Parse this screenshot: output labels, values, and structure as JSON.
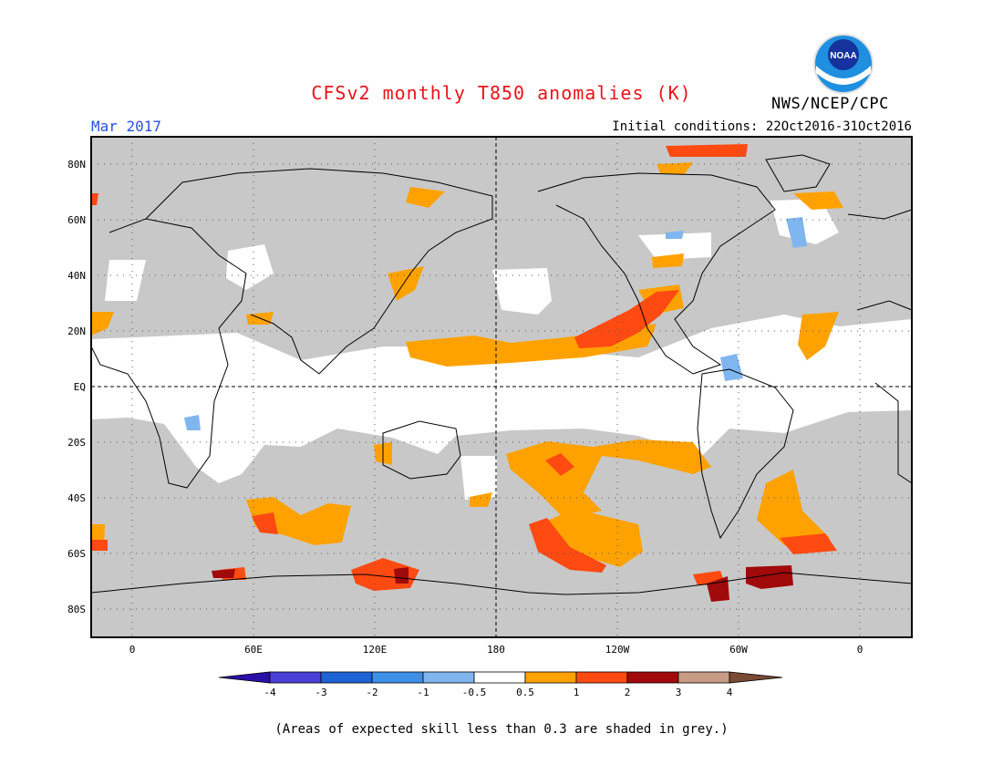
{
  "header": {
    "title": "CFSv2 monthly T850 anomalies (K)",
    "org": "NWS/NCEP/CPC",
    "valid_month": "Mar 2017",
    "initial_conditions": "Initial conditions: 22Oct2016-31Oct2016",
    "logo_text": "NOAA"
  },
  "map": {
    "lat_labels": [
      "80N",
      "60N",
      "40N",
      "20N",
      "EQ",
      "20S",
      "40S",
      "60S",
      "80S"
    ],
    "lon_labels": [
      "0",
      "60E",
      "120E",
      "180",
      "120W",
      "60W",
      "0"
    ],
    "colors": {
      "grey_mask": "#c8c8c8",
      "frame": "#000000"
    }
  },
  "legend": {
    "tick_labels": [
      "-4",
      "-3",
      "-2",
      "-1",
      "-0.5",
      "0.5",
      "1",
      "2",
      "3",
      "4"
    ],
    "colors": [
      "#2a0fa8",
      "#4a3fd6",
      "#1e63d6",
      "#3d8fe8",
      "#7fb6f0",
      "#ffffff",
      "#ffa200",
      "#ff4a12",
      "#a00a0a",
      "#c79b86",
      "#7a4a35"
    ]
  },
  "footer": {
    "note": "(Areas of expected skill less than 0.3 are shaded in grey.)"
  }
}
